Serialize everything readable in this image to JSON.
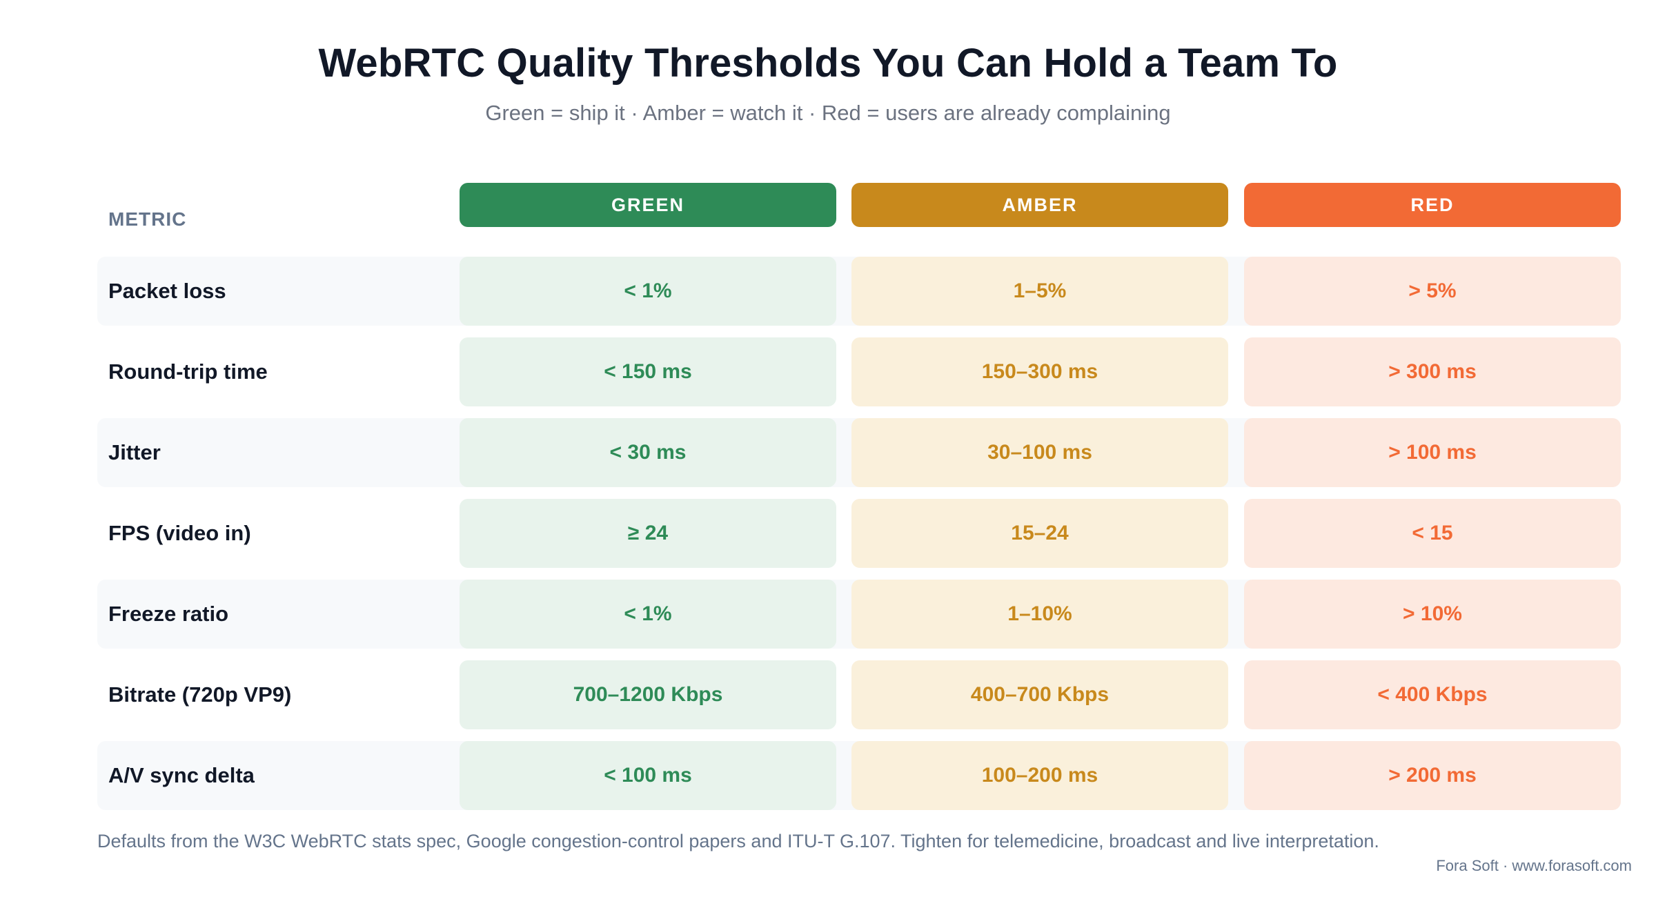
{
  "title": "WebRTC Quality Thresholds You Can Hold a Team To",
  "subtitle": "Green = ship it · Amber = watch it · Red = users are already complaining",
  "table": {
    "metric_header": "METRIC",
    "columns": [
      {
        "label": "GREEN",
        "color": "#2e8b57",
        "cell_bg": "#e8f3ec",
        "text_color": "#2e8b57"
      },
      {
        "label": "AMBER",
        "color": "#c8891c",
        "cell_bg": "#faf0db",
        "text_color": "#c8891c"
      },
      {
        "label": "RED",
        "color": "#f26a35",
        "cell_bg": "#fde9e0",
        "text_color": "#f26a35"
      }
    ],
    "rows": [
      {
        "metric": "Packet loss",
        "green": "< 1%",
        "amber": "1–5%",
        "red": "> 5%"
      },
      {
        "metric": "Round-trip time",
        "green": "< 150 ms",
        "amber": "150–300 ms",
        "red": "> 300 ms"
      },
      {
        "metric": "Jitter",
        "green": "< 30 ms",
        "amber": "30–100 ms",
        "red": "> 100 ms"
      },
      {
        "metric": "FPS (video in)",
        "green": "≥ 24",
        "amber": "15–24",
        "red": "< 15"
      },
      {
        "metric": "Freeze ratio",
        "green": "< 1%",
        "amber": "1–10%",
        "red": "> 10%"
      },
      {
        "metric": "Bitrate (720p VP9)",
        "green": "700–1200 Kbps",
        "amber": "400–700 Kbps",
        "red": "< 400 Kbps"
      },
      {
        "metric": "A/V sync delta",
        "green": "< 100 ms",
        "amber": "100–200 ms",
        "red": "> 200 ms"
      }
    ]
  },
  "footnote": "Defaults from the W3C WebRTC stats spec, Google congestion-control papers and ITU-T G.107. Tighten for telemedicine, broadcast and live interpretation.",
  "credit": "Fora Soft · www.forasoft.com"
}
